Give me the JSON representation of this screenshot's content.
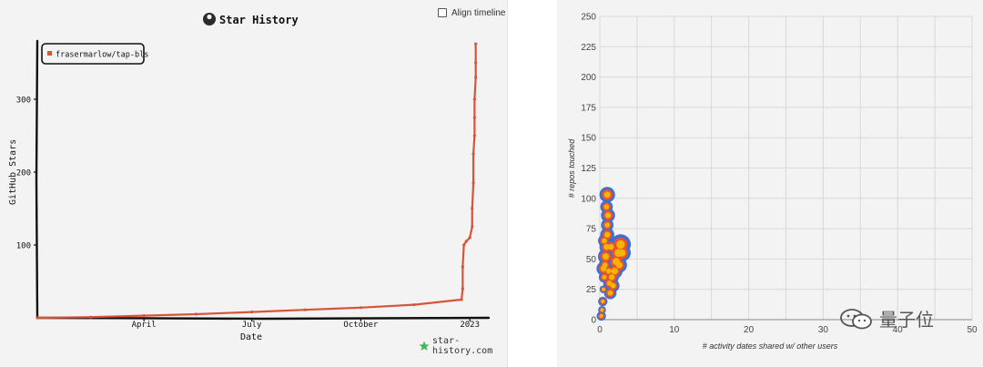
{
  "left_chart": {
    "title": "Star History",
    "align_label": "Align timeline",
    "credit": "star-history.com",
    "colors": {
      "line": "#d9533b",
      "axis": "#111111",
      "background": "#f3f3f3"
    }
  },
  "right_chart": {
    "watermark": "量子位",
    "colors": {
      "bubble_outer": "#3d6fd6",
      "bubble_mid": "#e8532d",
      "bubble_inner": "#f4b400",
      "grid": "#d8d8d8",
      "background": "#f3f3f3"
    }
  },
  "chart_data": [
    {
      "type": "line",
      "title": "Star History",
      "xlabel": "Date",
      "ylabel": "GitHub Stars",
      "x_ticks": [
        "April",
        "July",
        "October",
        "2023"
      ],
      "y_ticks": [
        100,
        200,
        300
      ],
      "ylim": [
        0,
        380
      ],
      "xlim": [
        "2022-01-01",
        "2023-01-17"
      ],
      "legend_position": "top-left",
      "series": [
        {
          "name": "frasermarlow/tap-bls",
          "x": [
            "2022-01-01",
            "2022-02-15",
            "2022-04-01",
            "2022-05-15",
            "2022-07-01",
            "2022-08-15",
            "2022-10-01",
            "2022-11-15",
            "2022-12-25",
            "2022-12-26",
            "2022-12-26",
            "2022-12-27",
            "2022-12-29",
            "2023-01-01",
            "2023-01-03",
            "2023-01-03",
            "2023-01-04",
            "2023-01-04",
            "2023-01-05",
            "2023-01-05",
            "2023-01-05",
            "2023-01-06",
            "2023-01-06",
            "2023-01-06"
          ],
          "y": [
            0,
            1,
            3,
            5,
            8,
            11,
            14,
            18,
            25,
            40,
            70,
            100,
            105,
            110,
            125,
            150,
            185,
            225,
            250,
            275,
            300,
            330,
            350,
            376
          ]
        }
      ]
    },
    {
      "type": "scatter",
      "title": "",
      "xlabel": "# activity dates shared w/ other users",
      "ylabel": "# repos touched",
      "x_ticks": [
        0,
        10,
        20,
        30,
        40,
        50
      ],
      "y_ticks": [
        0,
        25,
        50,
        75,
        100,
        125,
        150,
        175,
        200,
        225,
        250
      ],
      "xlim": [
        0,
        50
      ],
      "ylim": [
        0,
        250
      ],
      "grid": true,
      "points": [
        {
          "x": 0.2,
          "y": 3,
          "r": 0.6
        },
        {
          "x": 0.3,
          "y": 8,
          "r": 0.5
        },
        {
          "x": 0.4,
          "y": 15,
          "r": 0.6
        },
        {
          "x": 0.5,
          "y": 25,
          "r": 0.5
        },
        {
          "x": 0.6,
          "y": 35,
          "r": 0.7
        },
        {
          "x": 0.7,
          "y": 45,
          "r": 0.8
        },
        {
          "x": 0.8,
          "y": 52,
          "r": 1.0
        },
        {
          "x": 0.9,
          "y": 60,
          "r": 0.9
        },
        {
          "x": 1.0,
          "y": 70,
          "r": 0.9
        },
        {
          "x": 1.0,
          "y": 78,
          "r": 0.8
        },
        {
          "x": 1.1,
          "y": 86,
          "r": 0.9
        },
        {
          "x": 0.9,
          "y": 93,
          "r": 0.8
        },
        {
          "x": 1.0,
          "y": 103,
          "r": 1.0
        },
        {
          "x": 1.2,
          "y": 40,
          "r": 0.8
        },
        {
          "x": 1.3,
          "y": 30,
          "r": 0.8
        },
        {
          "x": 1.4,
          "y": 22,
          "r": 0.8
        },
        {
          "x": 1.6,
          "y": 35,
          "r": 0.9
        },
        {
          "x": 1.8,
          "y": 28,
          "r": 0.8
        },
        {
          "x": 2.0,
          "y": 40,
          "r": 1.0
        },
        {
          "x": 2.2,
          "y": 48,
          "r": 1.1
        },
        {
          "x": 2.5,
          "y": 55,
          "r": 1.2
        },
        {
          "x": 2.8,
          "y": 62,
          "r": 1.3
        },
        {
          "x": 3.0,
          "y": 55,
          "r": 1.1
        },
        {
          "x": 2.6,
          "y": 45,
          "r": 1.0
        },
        {
          "x": 1.5,
          "y": 60,
          "r": 0.9
        },
        {
          "x": 0.6,
          "y": 65,
          "r": 0.8
        },
        {
          "x": 0.5,
          "y": 42,
          "r": 0.9
        }
      ]
    }
  ]
}
